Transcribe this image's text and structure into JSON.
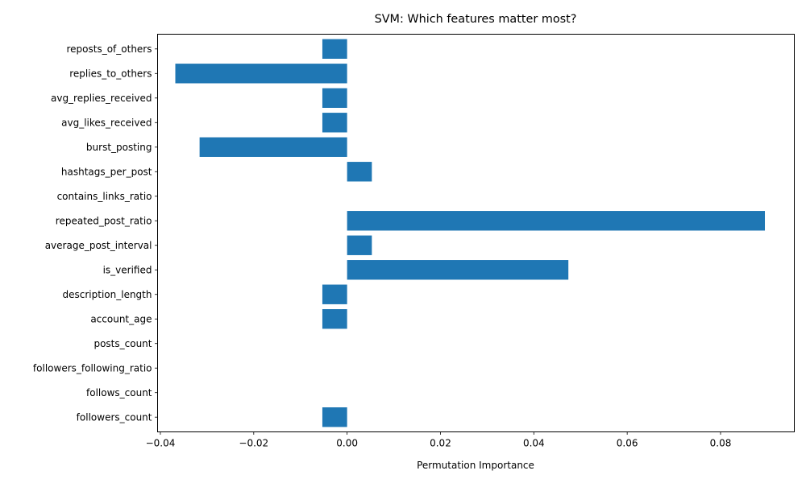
{
  "chart_data": {
    "type": "bar",
    "orientation": "horizontal",
    "title": "SVM: Which features matter most?",
    "xlabel": "Permutation Importance",
    "ylabel": "",
    "xlim": [
      -0.0406,
      0.0958
    ],
    "xticks": [
      -0.04,
      -0.02,
      0.0,
      0.02,
      0.04,
      0.06,
      0.08
    ],
    "xtick_labels": [
      "−0.04",
      "−0.02",
      "0.00",
      "0.02",
      "0.04",
      "0.06",
      "0.08"
    ],
    "grid": false,
    "bar_color": "#1f77b4",
    "categories": [
      "followers_count",
      "follows_count",
      "followers_following_ratio",
      "posts_count",
      "account_age",
      "description_length",
      "is_verified",
      "average_post_interval",
      "repeated_post_ratio",
      "contains_links_ratio",
      "hashtags_per_post",
      "burst_posting",
      "avg_likes_received",
      "avg_replies_received",
      "replies_to_others",
      "reposts_of_others"
    ],
    "values": [
      -0.0053,
      0.0,
      0.0,
      0.0,
      -0.0053,
      -0.0053,
      0.0474,
      0.0053,
      0.0895,
      0.0,
      0.0053,
      -0.0316,
      -0.0053,
      -0.0053,
      -0.0368,
      -0.0053
    ]
  }
}
